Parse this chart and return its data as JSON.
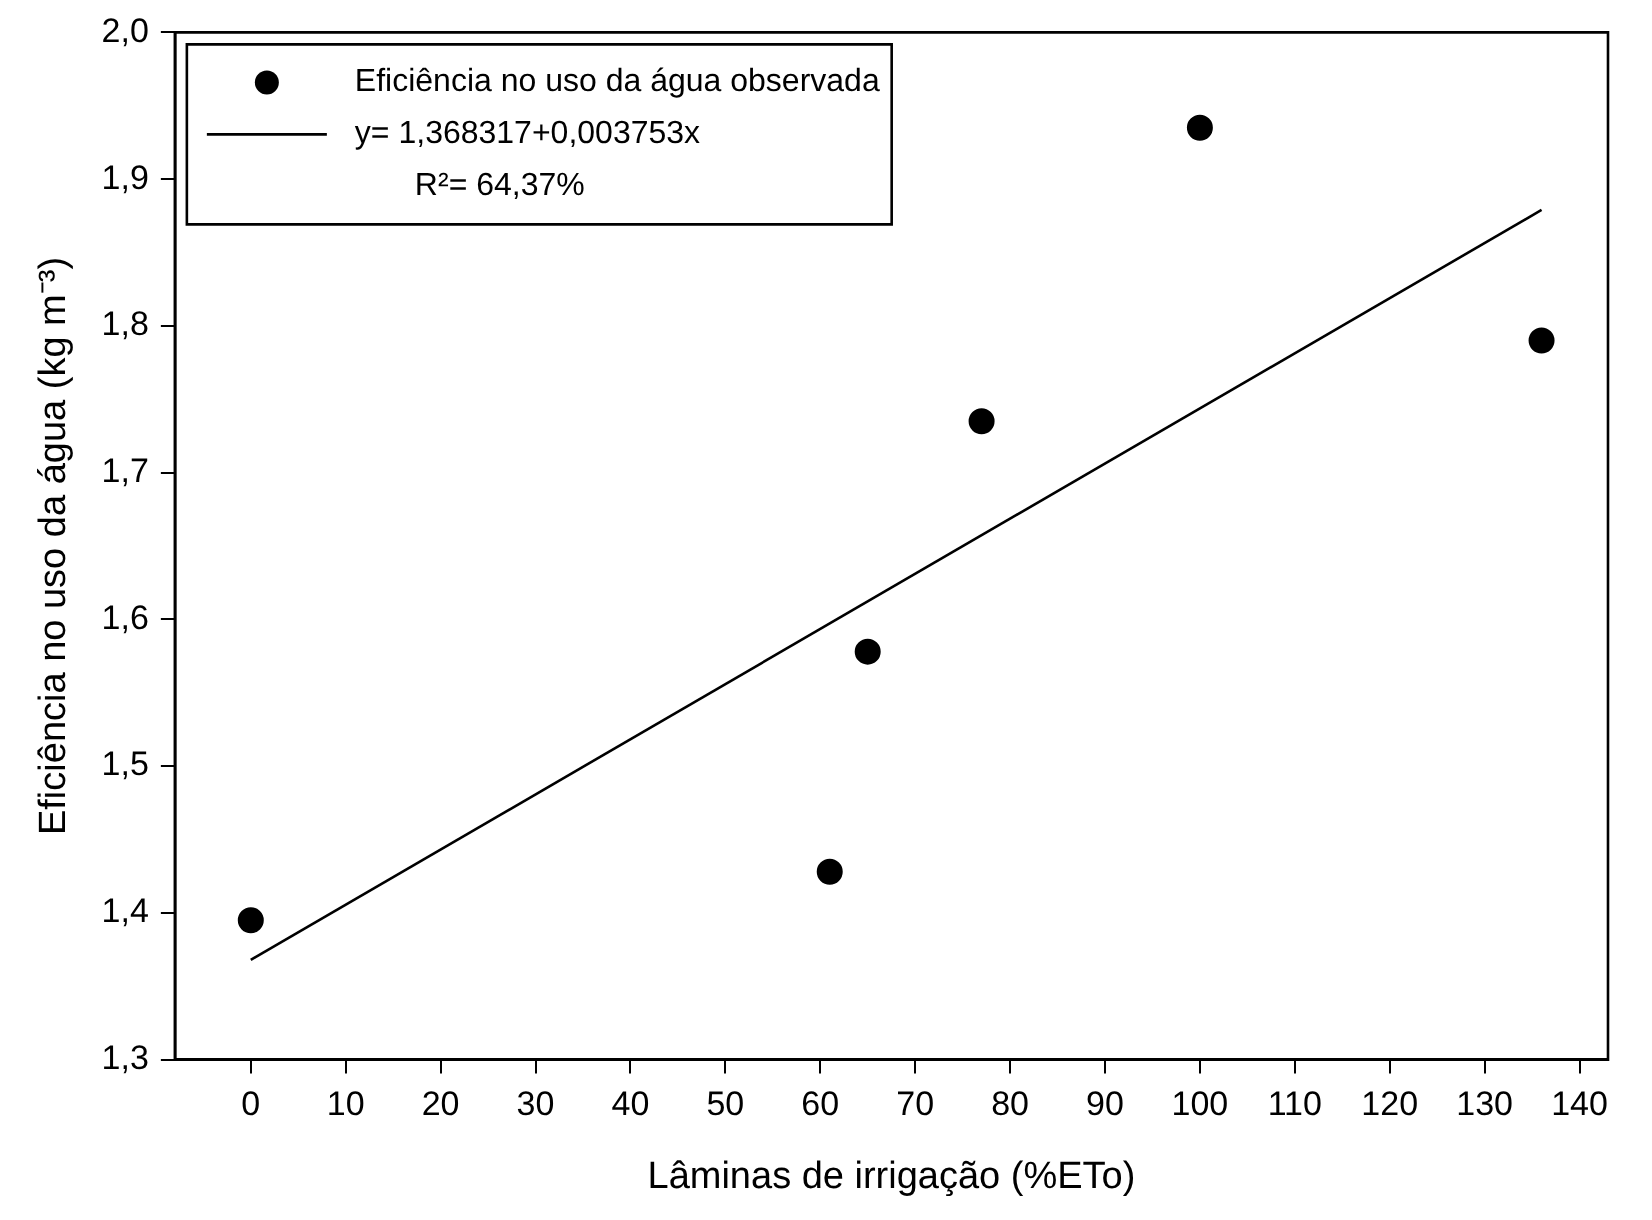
{
  "chart_data": {
    "type": "scatter",
    "xlabel": "Lâminas de irrigação (%ETo)",
    "ylabel": "Eficiência no uso da água (kg m⁻³)",
    "x": [
      0,
      61,
      65,
      77,
      100,
      136
    ],
    "series": [
      {
        "name": "Eficiência no uso da água observada",
        "color": "#000000",
        "marker": "circle",
        "values": [
          1.395,
          1.428,
          1.578,
          1.735,
          1.935,
          1.79
        ]
      },
      {
        "name": "y= 1,368317+0,003753x",
        "type": "line",
        "color": "#000000",
        "marker": "none",
        "line_style": "solid",
        "x": [
          0,
          136
        ],
        "values": [
          1.368,
          1.879
        ]
      }
    ],
    "xlim": [
      -8,
      143
    ],
    "xticks": [
      0,
      10,
      20,
      30,
      40,
      50,
      60,
      70,
      80,
      90,
      100,
      110,
      120,
      130,
      140
    ],
    "ylim": [
      1.3,
      2.0
    ],
    "yticks": [
      {
        "value": 1.3,
        "label": "1,3"
      },
      {
        "value": 1.4,
        "label": "1,4"
      },
      {
        "value": 1.5,
        "label": "1,5"
      },
      {
        "value": 1.6,
        "label": "1,6"
      },
      {
        "value": 1.7,
        "label": "1,7"
      },
      {
        "value": 1.8,
        "label": "1,8"
      },
      {
        "value": 1.9,
        "label": "1,9"
      },
      {
        "value": 2.0,
        "label": "2,0"
      }
    ],
    "grid": false,
    "legend": "top left",
    "annotations": [
      "R²= 64,37%"
    ]
  }
}
